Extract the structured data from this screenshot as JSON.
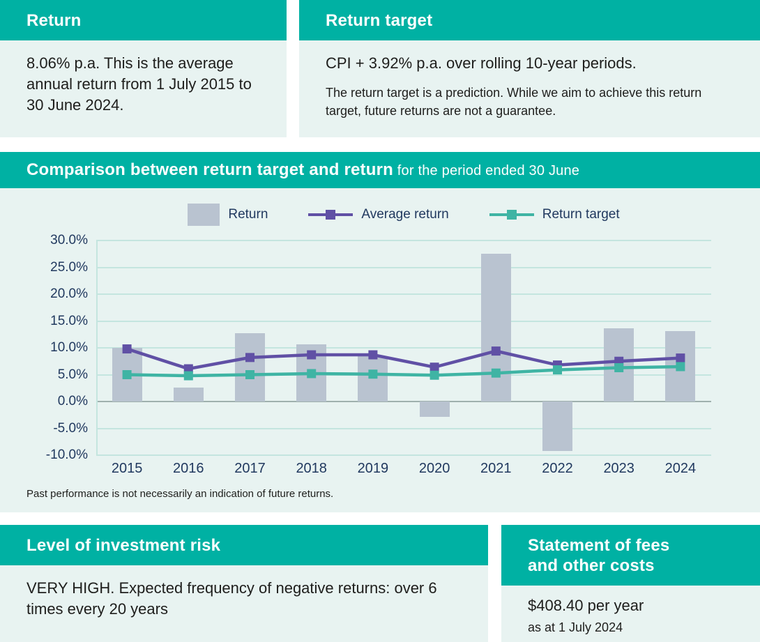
{
  "colors": {
    "teal_header": "#00b1a3",
    "panel_bg": "#e8f3f1",
    "bar": "#b9c3d0",
    "average_return_line": "#6050a5",
    "return_target_line": "#3fb4a4",
    "gridline": "#c4e5df",
    "zero_line": "#9fb0ad",
    "axis_text": "#21395f",
    "body_text": "#1e1e1c"
  },
  "return_box": {
    "title": "Return",
    "body": "8.06% p.a. This is the average annual return from 1 July 2015 to 30 June 2024."
  },
  "target_box": {
    "title": "Return target",
    "line1": "CPI + 3.92% p.a. over rolling 10-year periods.",
    "line2": "The return target is a prediction. While we aim to achieve this return target, future returns are not a guarantee."
  },
  "chart_panel": {
    "title_bold": "Comparison between return target and return",
    "title_rest": " for the period ended 30 June",
    "note": "Past performance is not necessarily an indication of future returns.",
    "legend": [
      {
        "label": "Return",
        "type": "bar",
        "color": "#b9c3d0"
      },
      {
        "label": "Average return",
        "type": "line",
        "color": "#6050a5"
      },
      {
        "label": "Return target",
        "type": "line",
        "color": "#3fb4a4"
      }
    ]
  },
  "chart_data": {
    "type": "bar",
    "title": "Comparison between return target and return for the period ended 30 June",
    "categories": [
      "2015",
      "2016",
      "2017",
      "2018",
      "2019",
      "2020",
      "2021",
      "2022",
      "2023",
      "2024"
    ],
    "series": [
      {
        "name": "Return",
        "type": "bar",
        "color": "#b9c3d0",
        "values": [
          10.0,
          2.6,
          12.7,
          10.7,
          8.4,
          -2.9,
          27.5,
          -9.2,
          13.6,
          13.1
        ]
      },
      {
        "name": "Average return",
        "type": "line",
        "color": "#6050a5",
        "values": [
          9.8,
          6.1,
          8.2,
          8.7,
          8.7,
          6.4,
          9.4,
          6.8,
          7.5,
          8.1
        ]
      },
      {
        "name": "Return target",
        "type": "line",
        "color": "#3fb4a4",
        "values": [
          5.0,
          4.8,
          5.0,
          5.2,
          5.1,
          4.9,
          5.3,
          5.9,
          6.3,
          6.5
        ]
      }
    ],
    "ylim": [
      -10,
      30
    ],
    "yticks": [
      30,
      25,
      20,
      15,
      10,
      5,
      0,
      -5,
      -10
    ],
    "ytick_labels": [
      "30.0%",
      "25.0%",
      "20.0%",
      "15.0%",
      "10.0%",
      "5.0%",
      "0.0%",
      "-5.0%",
      "-10.0%"
    ],
    "xlabel": "",
    "ylabel": "",
    "grid": true,
    "legend_position": "top"
  },
  "risk_box": {
    "title": "Level of investment risk",
    "body": "VERY HIGH. Expected frequency of negative returns: over 6 times every 20 years"
  },
  "fees_box": {
    "title": "Statement of fees and other costs",
    "amount": "$408.40 per year",
    "as_at": "as at 1 July 2024"
  }
}
